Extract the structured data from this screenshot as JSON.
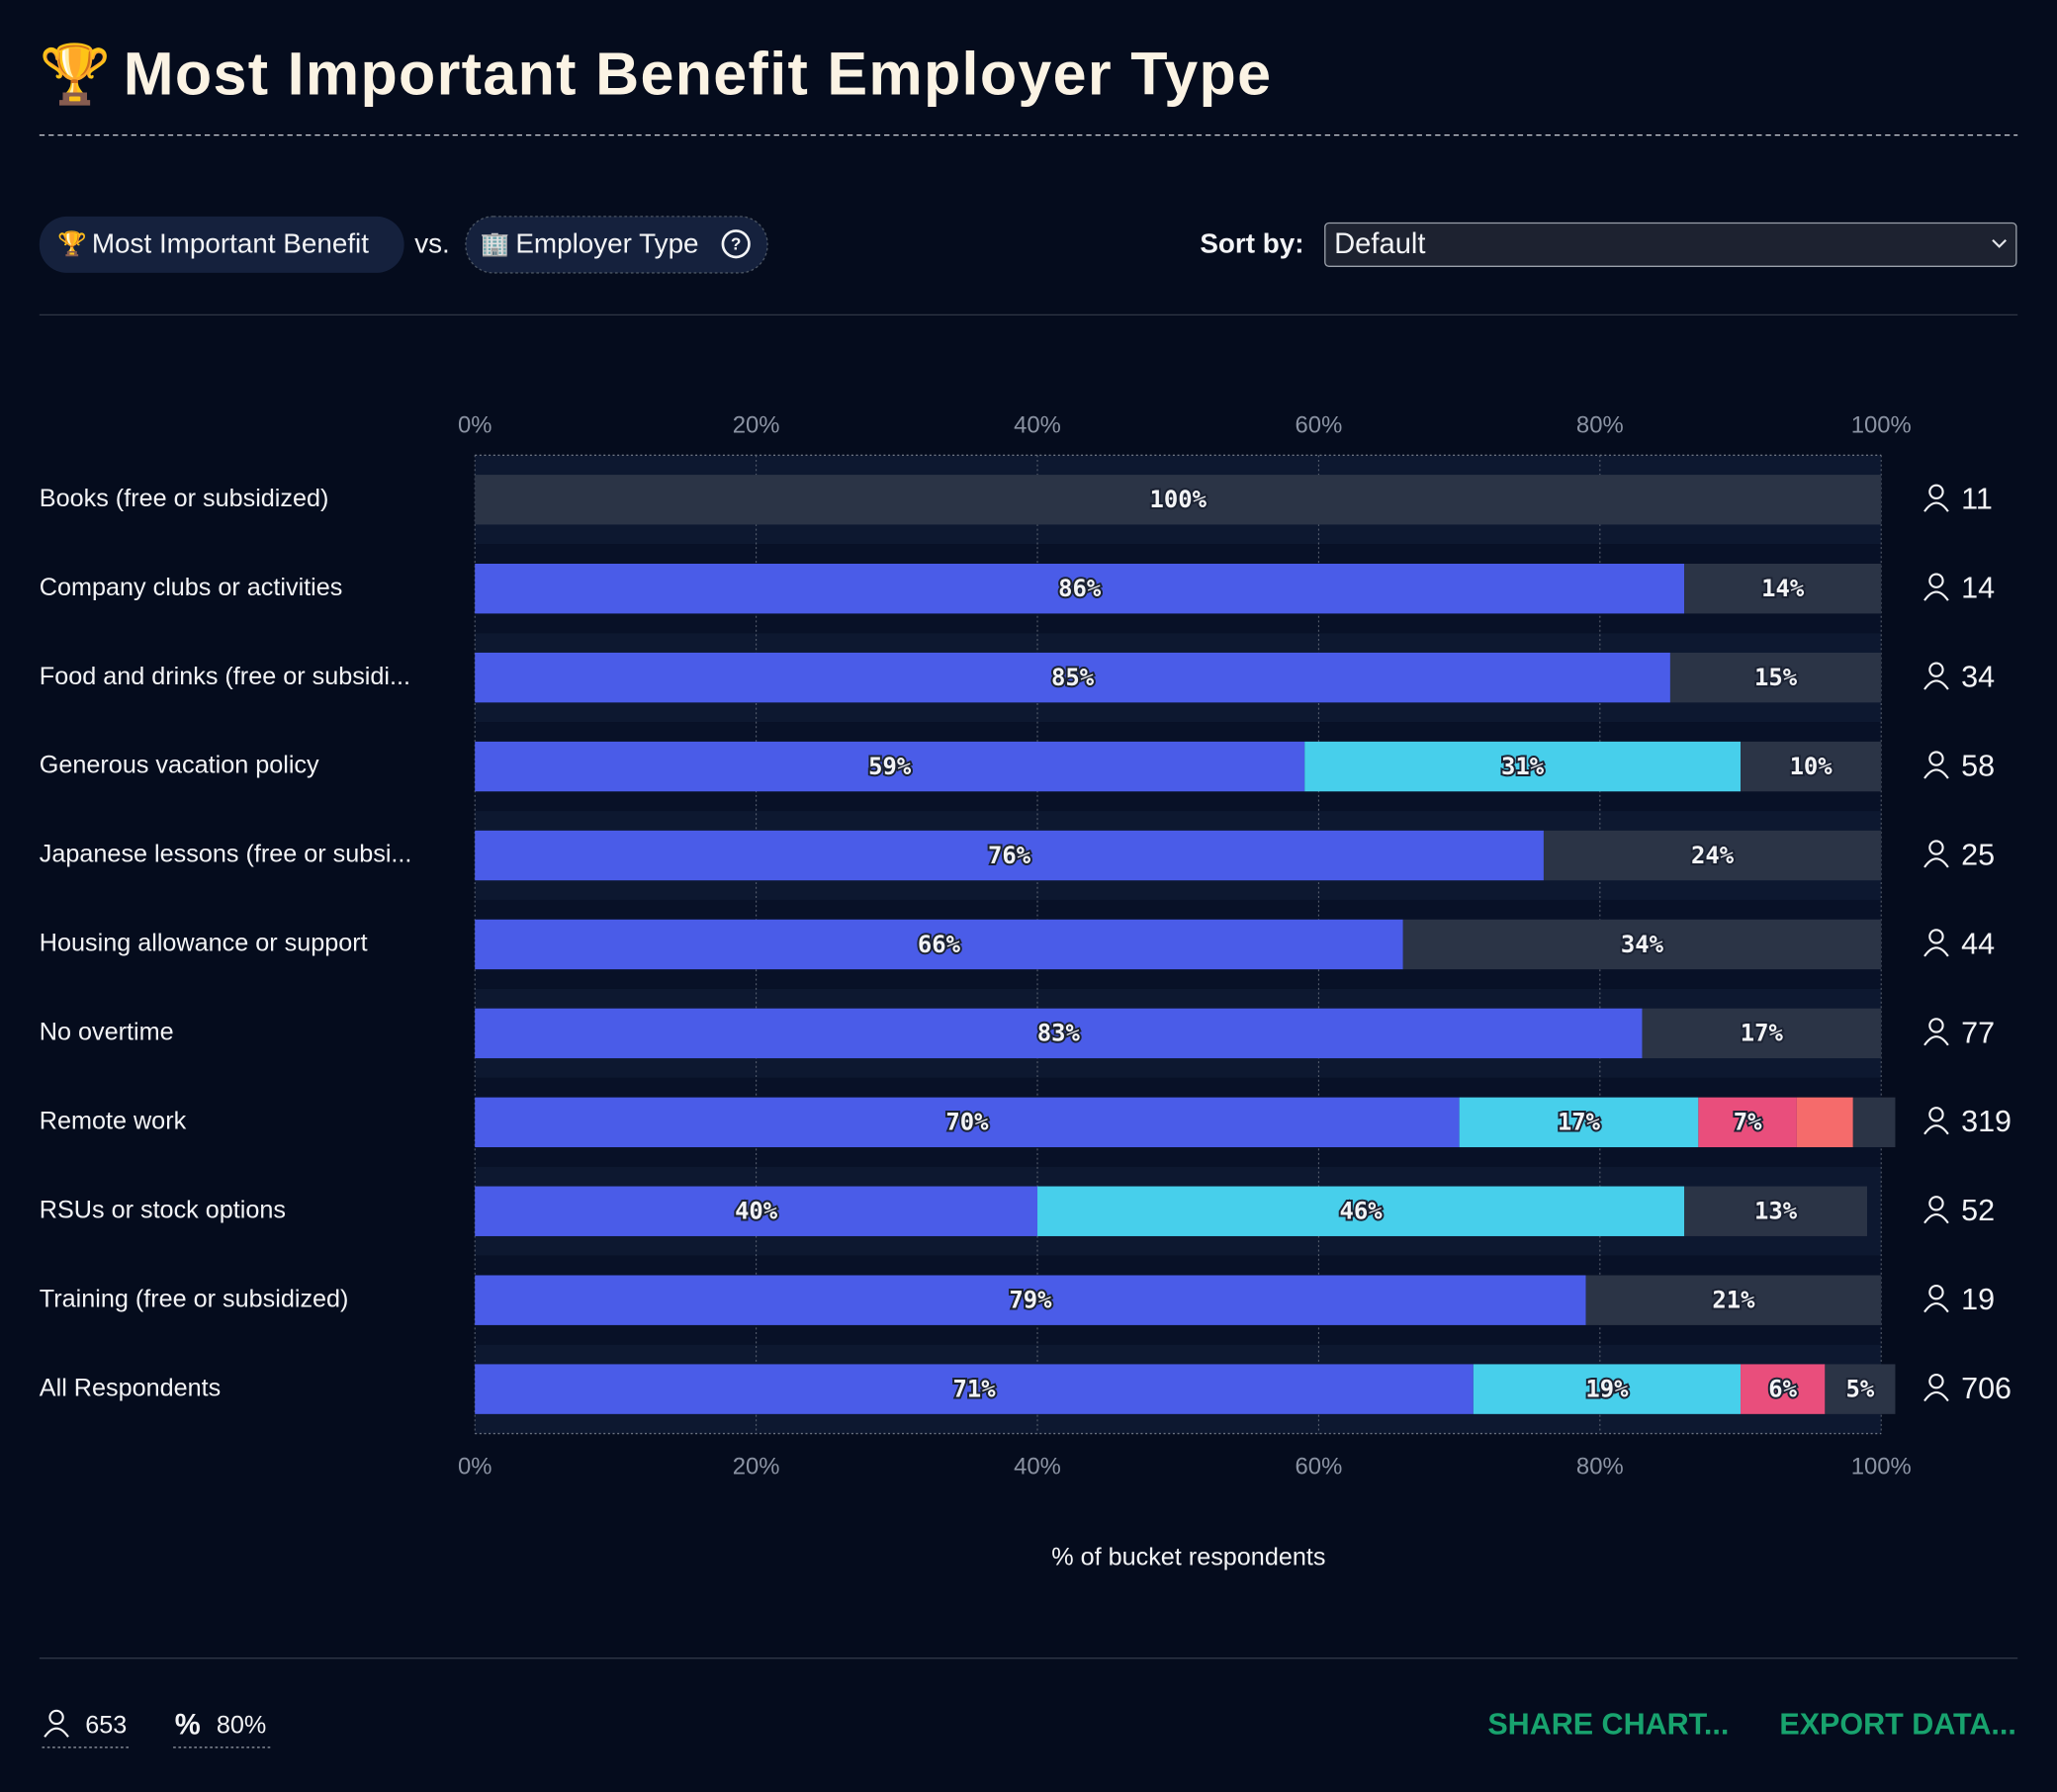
{
  "header": {
    "title": "Most Important Benefit Employer Type"
  },
  "controls": {
    "row_field": "Most Important Benefit",
    "versus": "vs.",
    "column_field": "Employer Type",
    "sort_label": "Sort by:",
    "sort_value": "Default"
  },
  "chart_data": {
    "type": "stacked-bar-horizontal",
    "categories": [
      "Books (free or subsidized)",
      "Company clubs or activities",
      "Food and drinks (free or subsidi...",
      "Generous vacation policy",
      "Japanese lessons (free or subsi...",
      "Housing allowance or support",
      "No overtime",
      "Remote work",
      "RSUs or stock options",
      "Training (free or subsidized)",
      "All Respondents"
    ],
    "series": [
      {
        "color": "#4a5ce8",
        "values": [
          null,
          86,
          85,
          59,
          76,
          66,
          83,
          70,
          40,
          79,
          71
        ],
        "value_labels": [
          null,
          "86%",
          "85%",
          "59%",
          "76%",
          "66%",
          "83%",
          "70%",
          "40%",
          "79%",
          "71%"
        ]
      },
      {
        "color": "#47cfeb",
        "values": [
          null,
          null,
          null,
          31,
          null,
          null,
          null,
          17,
          46,
          null,
          19
        ],
        "value_labels": [
          null,
          null,
          null,
          "31%",
          null,
          null,
          null,
          "17%",
          "46%",
          null,
          "19%"
        ]
      },
      {
        "color": "#e94e7c",
        "values": [
          null,
          null,
          null,
          null,
          null,
          null,
          null,
          7,
          null,
          null,
          6
        ],
        "value_labels": [
          null,
          null,
          null,
          null,
          null,
          null,
          null,
          "7%",
          null,
          null,
          "6%"
        ]
      },
      {
        "color": "#f56b6b",
        "values": [
          null,
          null,
          null,
          null,
          null,
          null,
          null,
          4,
          null,
          null,
          null
        ],
        "value_labels": [
          null,
          null,
          null,
          null,
          null,
          null,
          null,
          null,
          null,
          null,
          null
        ]
      },
      {
        "color": "#2b3446",
        "values": [
          100,
          14,
          15,
          10,
          24,
          34,
          17,
          3,
          13,
          21,
          5
        ],
        "value_labels": [
          "100%",
          "14%",
          "15%",
          "10%",
          "24%",
          "34%",
          "17%",
          null,
          "13%",
          "21%",
          "5%"
        ]
      }
    ],
    "respondents": [
      11,
      14,
      34,
      58,
      25,
      44,
      77,
      319,
      52,
      19,
      706
    ],
    "xlim": [
      0,
      100
    ],
    "xticks": [
      {
        "value": 0,
        "label": "0%"
      },
      {
        "value": 20,
        "label": "20%"
      },
      {
        "value": 40,
        "label": "40%"
      },
      {
        "value": 60,
        "label": "60%"
      },
      {
        "value": 80,
        "label": "80%"
      },
      {
        "value": 100,
        "label": "100%"
      }
    ],
    "xlabel": "% of bucket respondents",
    "grid": true
  },
  "footer": {
    "total": "653",
    "percent": "80%",
    "share": "SHARE CHART...",
    "export": "EXPORT DATA..."
  }
}
